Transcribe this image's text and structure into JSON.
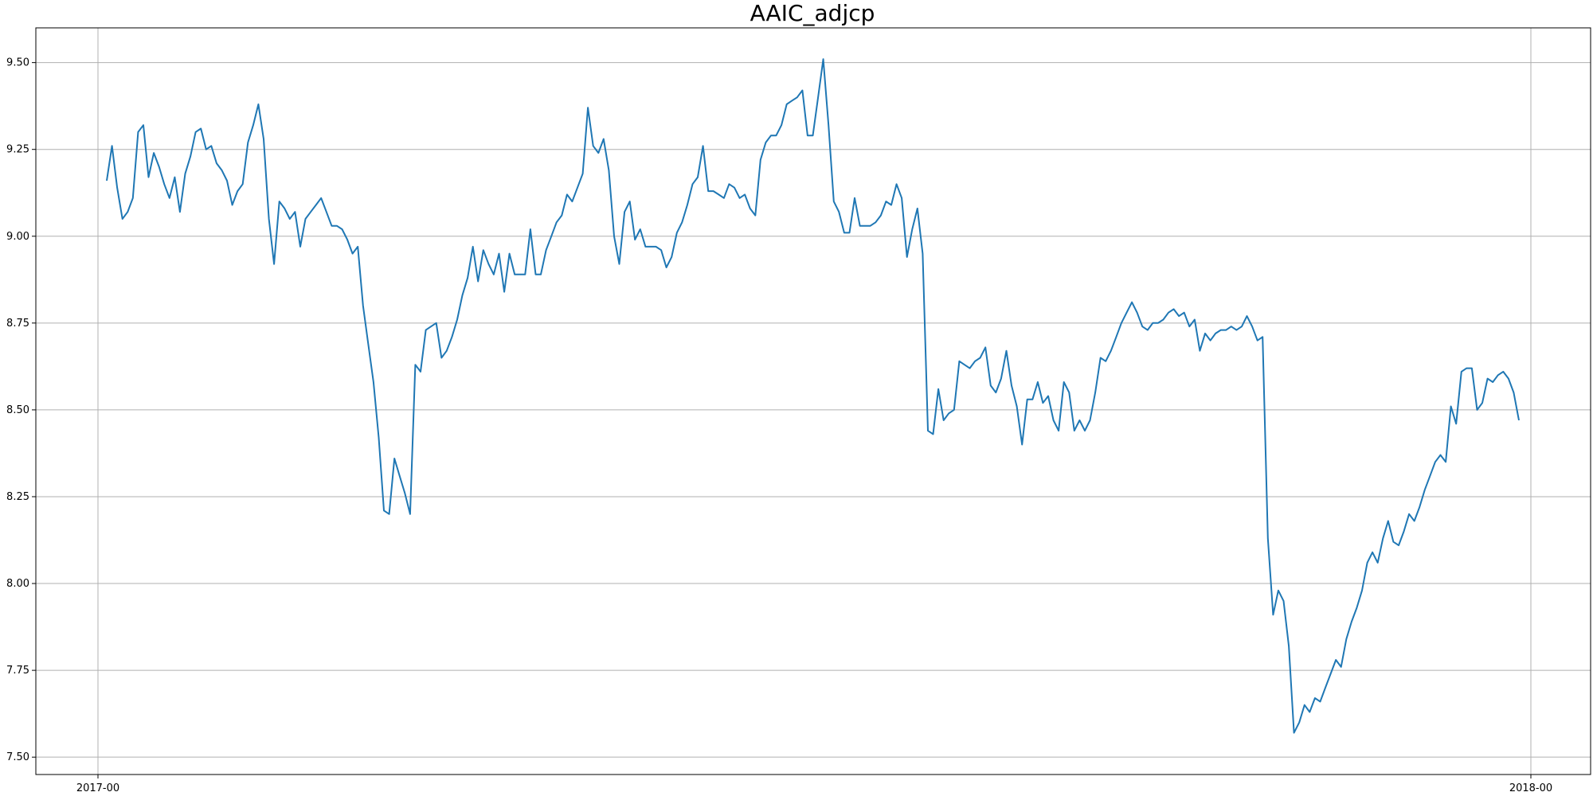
{
  "chart_data": {
    "type": "line",
    "title": "AAIC_adjcp",
    "xlabel": "",
    "ylabel": "",
    "x_ticks": [
      "2017-00",
      "2018-00"
    ],
    "y_ticks": [
      "7.50",
      "7.75",
      "8.00",
      "8.25",
      "8.50",
      "8.75",
      "9.00",
      "9.25",
      "9.50"
    ],
    "ylim": [
      7.45,
      9.6
    ],
    "grid": true,
    "line_color": "#1f77b4",
    "series": [
      {
        "values": [
          9.16,
          9.26,
          9.14,
          9.05,
          9.07,
          9.11,
          9.3,
          9.32,
          9.17,
          9.24,
          9.2,
          9.15,
          9.11,
          9.17,
          9.07,
          9.18,
          9.23,
          9.3,
          9.31,
          9.25,
          9.26,
          9.21,
          9.19,
          9.16,
          9.09,
          9.13,
          9.15,
          9.27,
          9.32,
          9.38,
          9.28,
          9.05,
          8.92,
          9.1,
          9.08,
          9.05,
          9.07,
          8.97,
          9.05,
          9.07,
          9.09,
          9.11,
          9.07,
          9.03,
          9.03,
          9.02,
          8.99,
          8.95,
          8.97,
          8.8,
          8.69,
          8.58,
          8.42,
          8.21,
          8.2,
          8.36,
          8.31,
          8.26,
          8.2,
          8.63,
          8.61,
          8.73,
          8.74,
          8.75,
          8.65,
          8.67,
          8.71,
          8.76,
          8.83,
          8.88,
          8.97,
          8.87,
          8.96,
          8.92,
          8.89,
          8.95,
          8.84,
          8.95,
          8.89,
          8.89,
          8.89,
          9.02,
          8.89,
          8.89,
          8.96,
          9.0,
          9.04,
          9.06,
          9.12,
          9.1,
          9.14,
          9.18,
          9.37,
          9.26,
          9.24,
          9.28,
          9.19,
          9.0,
          8.92,
          9.07,
          9.1,
          8.99,
          9.02,
          8.97,
          8.97,
          8.97,
          8.96,
          8.91,
          8.94,
          9.01,
          9.04,
          9.09,
          9.15,
          9.17,
          9.26,
          9.13,
          9.13,
          9.12,
          9.11,
          9.15,
          9.14,
          9.11,
          9.12,
          9.08,
          9.06,
          9.22,
          9.27,
          9.29,
          9.29,
          9.32,
          9.38,
          9.39,
          9.4,
          9.42,
          9.29,
          9.29,
          9.4,
          9.51,
          9.32,
          9.1,
          9.07,
          9.01,
          9.01,
          9.11,
          9.03,
          9.03,
          9.03,
          9.04,
          9.06,
          9.1,
          9.09,
          9.15,
          9.11,
          8.94,
          9.02,
          9.08,
          8.95,
          8.44,
          8.43,
          8.56,
          8.47,
          8.49,
          8.5,
          8.64,
          8.63,
          8.62,
          8.64,
          8.65,
          8.68,
          8.57,
          8.55,
          8.59,
          8.67,
          8.57,
          8.51,
          8.4,
          8.53,
          8.53,
          8.58,
          8.52,
          8.54,
          8.47,
          8.44,
          8.58,
          8.55,
          8.44,
          8.47,
          8.44,
          8.47,
          8.55,
          8.65,
          8.64,
          8.67,
          8.71,
          8.75,
          8.78,
          8.81,
          8.78,
          8.74,
          8.73,
          8.75,
          8.75,
          8.76,
          8.78,
          8.79,
          8.77,
          8.78,
          8.74,
          8.76,
          8.67,
          8.72,
          8.7,
          8.72,
          8.73,
          8.73,
          8.74,
          8.73,
          8.74,
          8.77,
          8.74,
          8.7,
          8.71,
          8.13,
          7.91,
          7.98,
          7.95,
          7.82,
          7.57,
          7.6,
          7.65,
          7.63,
          7.67,
          7.66,
          7.7,
          7.74,
          7.78,
          7.76,
          7.84,
          7.89,
          7.93,
          7.98,
          8.06,
          8.09,
          8.06,
          8.13,
          8.18,
          8.12,
          8.11,
          8.15,
          8.2,
          8.18,
          8.22,
          8.27,
          8.31,
          8.35,
          8.37,
          8.35,
          8.51,
          8.46,
          8.61,
          8.62,
          8.62,
          8.5,
          8.52,
          8.59,
          8.58,
          8.6,
          8.61,
          8.59,
          8.55,
          8.47
        ]
      }
    ]
  }
}
